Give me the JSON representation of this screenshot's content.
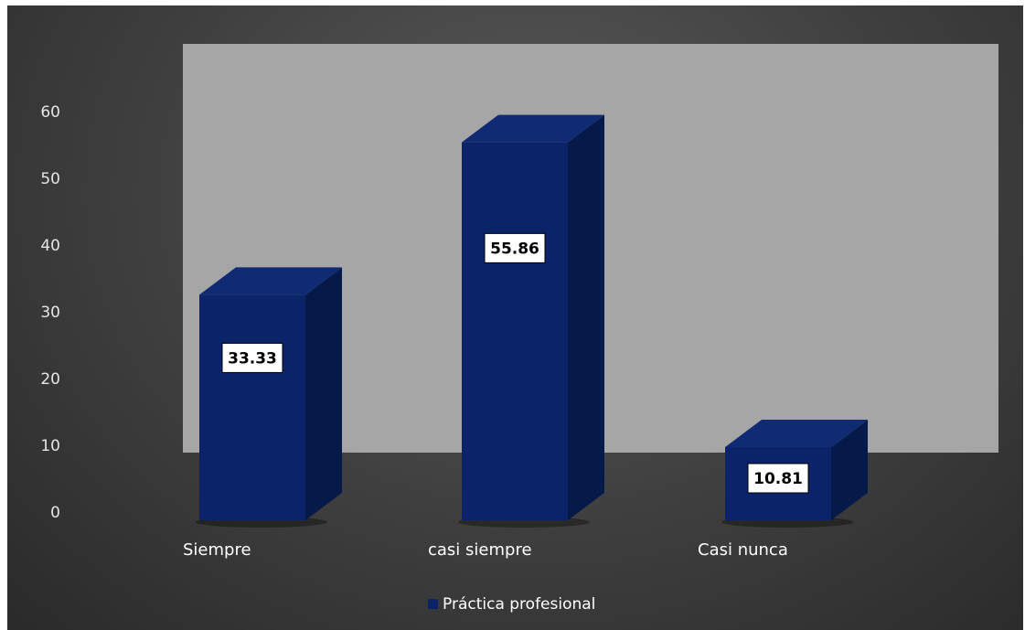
{
  "chart_data": {
    "type": "bar",
    "style": "3d-column",
    "categories": [
      "Siempre",
      "casi siempre",
      "Casi nunca"
    ],
    "series": [
      {
        "name": "Práctica profesional",
        "values": [
          33.33,
          55.86,
          10.81
        ],
        "color": "#0b2469"
      }
    ],
    "data_labels": [
      "33.33",
      "55.86",
      "10.81"
    ],
    "y_ticks": [
      "0",
      "10",
      "20",
      "30",
      "40",
      "50",
      "60"
    ],
    "ylim": [
      0,
      60
    ],
    "title": "",
    "xlabel": "",
    "ylabel": "",
    "legend_position": "bottom",
    "grid": false,
    "colors": {
      "back_wall": "#a6a6a6",
      "bar_front": "#0b2469",
      "bar_side": "#061a4a",
      "bar_top": "#102b73",
      "background": "#3e3e3e"
    }
  }
}
